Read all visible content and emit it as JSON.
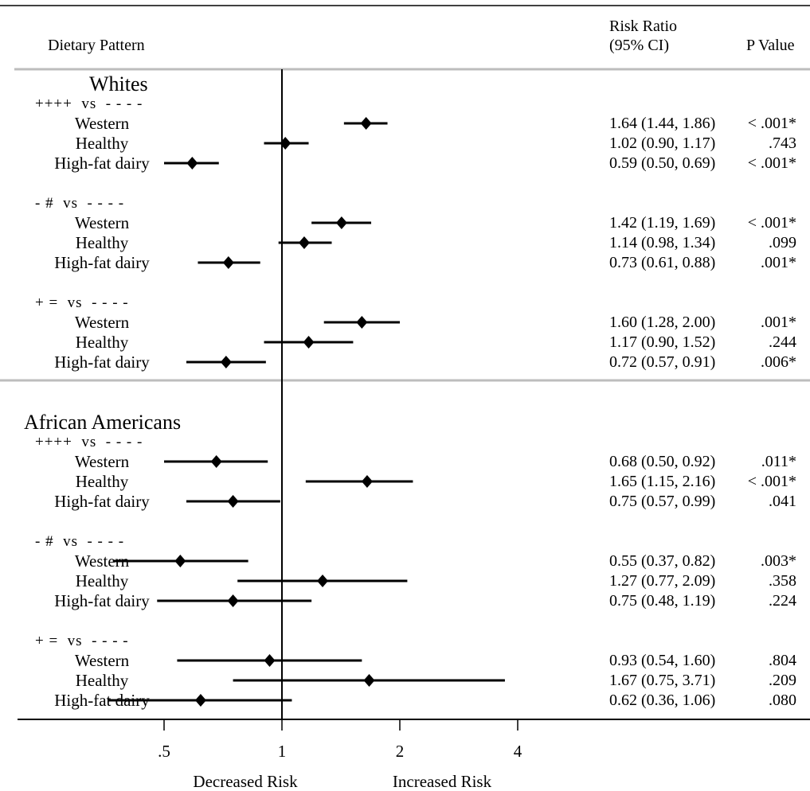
{
  "header": {
    "pattern_col": "Dietary Pattern",
    "rr_col_line1": "Risk Ratio",
    "rr_col_line2": "(95% CI)",
    "p_col": "P Value"
  },
  "footer": {
    "decreased": "Decreased Risk",
    "increased": "Increased Risk"
  },
  "chart_data": {
    "type": "forest",
    "reference_value": 1,
    "x_ticks": [
      {
        "value": 0.5,
        "label": ".5"
      },
      {
        "value": 1,
        "label": "1"
      },
      {
        "value": 2,
        "label": "2"
      },
      {
        "value": 4,
        "label": "4"
      }
    ],
    "groups": [
      {
        "name": "Whites",
        "comparisons": [
          {
            "label": "++++  vs  - - - -",
            "rows": [
              {
                "label": "Western",
                "rr": 1.64,
                "lo": 1.44,
                "hi": 1.86,
                "rr_text": "1.64 (1.44, 1.86)",
                "p": "< .001*"
              },
              {
                "label": "Healthy",
                "rr": 1.02,
                "lo": 0.9,
                "hi": 1.17,
                "rr_text": "1.02 (0.90, 1.17)",
                "p": ".743"
              },
              {
                "label": "High-fat dairy",
                "rr": 0.59,
                "lo": 0.5,
                "hi": 0.69,
                "rr_text": "0.59 (0.50, 0.69)",
                "p": "< .001*"
              }
            ]
          },
          {
            "label": "- #  vs  - - - -",
            "rows": [
              {
                "label": "Western",
                "rr": 1.42,
                "lo": 1.19,
                "hi": 1.69,
                "rr_text": "1.42 (1.19, 1.69)",
                "p": "< .001*"
              },
              {
                "label": "Healthy",
                "rr": 1.14,
                "lo": 0.98,
                "hi": 1.34,
                "rr_text": "1.14 (0.98, 1.34)",
                "p": ".099"
              },
              {
                "label": "High-fat dairy",
                "rr": 0.73,
                "lo": 0.61,
                "hi": 0.88,
                "rr_text": "0.73 (0.61, 0.88)",
                "p": ".001*"
              }
            ]
          },
          {
            "label": "+ =  vs  - - - -",
            "rows": [
              {
                "label": "Western",
                "rr": 1.6,
                "lo": 1.28,
                "hi": 2.0,
                "rr_text": "1.60 (1.28, 2.00)",
                "p": ".001*"
              },
              {
                "label": "Healthy",
                "rr": 1.17,
                "lo": 0.9,
                "hi": 1.52,
                "rr_text": "1.17 (0.90, 1.52)",
                "p": ".244"
              },
              {
                "label": "High-fat dairy",
                "rr": 0.72,
                "lo": 0.57,
                "hi": 0.91,
                "rr_text": "0.72 (0.57, 0.91)",
                "p": ".006*"
              }
            ]
          }
        ]
      },
      {
        "name": "African Americans",
        "comparisons": [
          {
            "label": "++++  vs  - - - -",
            "rows": [
              {
                "label": "Western",
                "rr": 0.68,
                "lo": 0.5,
                "hi": 0.92,
                "rr_text": "0.68 (0.50, 0.92)",
                "p": ".011*"
              },
              {
                "label": "Healthy",
                "rr": 1.65,
                "lo": 1.15,
                "hi": 2.16,
                "rr_text": "1.65 (1.15, 2.16)",
                "p": "< .001*"
              },
              {
                "label": "High-fat dairy",
                "rr": 0.75,
                "lo": 0.57,
                "hi": 0.99,
                "rr_text": "0.75 (0.57, 0.99)",
                "p": ".041"
              }
            ]
          },
          {
            "label": "- #  vs  - - - -",
            "rows": [
              {
                "label": "Western",
                "rr": 0.55,
                "lo": 0.37,
                "hi": 0.82,
                "rr_text": "0.55 (0.37, 0.82)",
                "p": ".003*"
              },
              {
                "label": "Healthy",
                "rr": 1.27,
                "lo": 0.77,
                "hi": 2.09,
                "rr_text": "1.27 (0.77, 2.09)",
                "p": ".358"
              },
              {
                "label": "High-fat dairy",
                "rr": 0.75,
                "lo": 0.48,
                "hi": 1.19,
                "rr_text": "0.75 (0.48, 1.19)",
                "p": ".224"
              }
            ]
          },
          {
            "label": "+ =  vs  - - - -",
            "rows": [
              {
                "label": "Western",
                "rr": 0.93,
                "lo": 0.54,
                "hi": 1.6,
                "rr_text": "0.93 (0.54, 1.60)",
                "p": ".804"
              },
              {
                "label": "Healthy",
                "rr": 1.67,
                "lo": 0.75,
                "hi": 3.71,
                "rr_text": "1.67 (0.75, 3.71)",
                "p": ".209"
              },
              {
                "label": "High-fat dairy",
                "rr": 0.62,
                "lo": 0.36,
                "hi": 1.06,
                "rr_text": "0.62 (0.36, 1.06)",
                "p": ".080"
              }
            ]
          }
        ]
      }
    ]
  }
}
